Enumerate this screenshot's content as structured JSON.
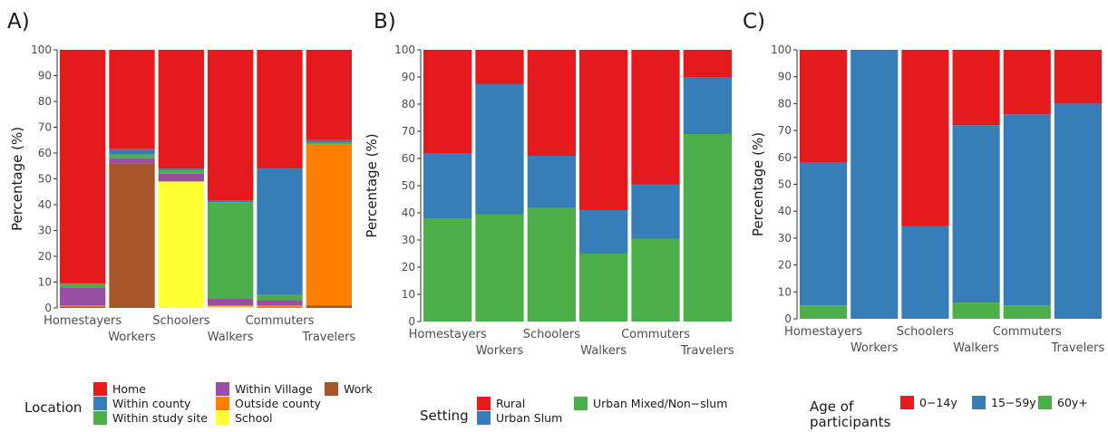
{
  "chart_data": [
    {
      "type": "bar",
      "stacked": true,
      "panel_label": "A)",
      "ylabel": "Percentage (%)",
      "ylim": [
        0,
        100
      ],
      "yticks": [
        0,
        10,
        20,
        30,
        40,
        50,
        60,
        70,
        80,
        90,
        100
      ],
      "categories": [
        "Homestayers",
        "Workers",
        "Schoolers",
        "Walkers",
        "Commuters",
        "Travelers"
      ],
      "legend_title": "Location",
      "legend_items": [
        "Home",
        "Within county",
        "Within study site",
        "Within Village",
        "Outside county",
        "School",
        "Work"
      ],
      "stack_order_bottom_to_top": [
        "Work",
        "School",
        "Outside county",
        "Within Village",
        "Within study site",
        "Within county",
        "Home"
      ],
      "series": [
        {
          "name": "Work",
          "color": "#a65628",
          "values": [
            0.5,
            56,
            0,
            0,
            0,
            1
          ]
        },
        {
          "name": "School",
          "color": "#ffff33",
          "values": [
            0,
            0,
            49,
            0.5,
            0,
            0
          ]
        },
        {
          "name": "Outside county",
          "color": "#ff7f00",
          "values": [
            0.5,
            0,
            0,
            0.5,
            1,
            62.5
          ]
        },
        {
          "name": "Within Village",
          "color": "#984ea3",
          "values": [
            7,
            2,
            3,
            2.5,
            2,
            0
          ]
        },
        {
          "name": "Within study site",
          "color": "#4daf4a",
          "values": [
            1.5,
            1.5,
            1.5,
            37.5,
            2,
            0.5
          ]
        },
        {
          "name": "Within county",
          "color": "#377eb8",
          "values": [
            0,
            2,
            0.5,
            0.5,
            49,
            1
          ]
        },
        {
          "name": "Home",
          "color": "#e41a1c",
          "values": [
            90.5,
            38.5,
            46,
            58.5,
            46,
            35
          ]
        }
      ]
    },
    {
      "type": "bar",
      "stacked": true,
      "panel_label": "B)",
      "ylabel": "Percentage (%)",
      "ylim": [
        0,
        100
      ],
      "yticks": [
        0,
        10,
        20,
        30,
        40,
        50,
        60,
        70,
        80,
        90,
        100
      ],
      "categories": [
        "Homestayers",
        "Workers",
        "Schoolers",
        "Walkers",
        "Commuters",
        "Travelers"
      ],
      "legend_title": "Setting",
      "legend_items": [
        "Rural",
        "Urban Slum",
        "Urban Mixed/Non−slum"
      ],
      "series": [
        {
          "name": "Urban Mixed/Non−slum",
          "color": "#4daf4a",
          "values": [
            38,
            39.5,
            42,
            25,
            30.5,
            69
          ]
        },
        {
          "name": "Urban Slum",
          "color": "#377eb8",
          "values": [
            24,
            48,
            19,
            16,
            20,
            21
          ]
        },
        {
          "name": "Rural",
          "color": "#e41a1c",
          "values": [
            38,
            12.5,
            39,
            59,
            49.5,
            10
          ]
        }
      ]
    },
    {
      "type": "bar",
      "stacked": true,
      "panel_label": "C)",
      "ylabel": "Percentage (%)",
      "ylim": [
        0,
        100
      ],
      "yticks": [
        0,
        10,
        20,
        30,
        40,
        50,
        60,
        70,
        80,
        90,
        100
      ],
      "categories": [
        "Homestayers",
        "Workers",
        "Schoolers",
        "Walkers",
        "Commuters",
        "Travelers"
      ],
      "legend_title": "Age of participants",
      "legend_title_lines": [
        "Age of",
        "participants"
      ],
      "legend_items": [
        "0−14y",
        "15−59y",
        "60y+"
      ],
      "series": [
        {
          "name": "60y+",
          "color": "#4daf4a",
          "values": [
            5,
            0,
            0,
            6,
            5,
            0
          ]
        },
        {
          "name": "15−59y",
          "color": "#377eb8",
          "values": [
            53,
            100,
            34.5,
            66,
            71,
            80
          ]
        },
        {
          "name": "0−14y",
          "color": "#e41a1c",
          "values": [
            42,
            0,
            65.5,
            28,
            24,
            20
          ]
        }
      ]
    }
  ]
}
